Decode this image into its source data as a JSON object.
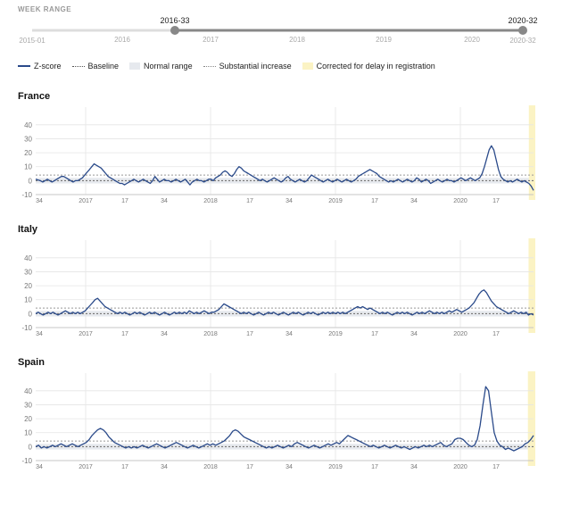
{
  "week_range": {
    "label": "WEEK RANGE",
    "start_value": "2016-33",
    "end_value": "2020-32",
    "min_label": "2015-01",
    "max_label": "2020-32",
    "year_labels": [
      "2016",
      "2017",
      "2018",
      "2019",
      "2020"
    ]
  },
  "legend": {
    "zscore": "Z-score",
    "baseline": "Baseline",
    "normal_range": "Normal range",
    "substantial_increase": "Substantial increase",
    "corrected": "Corrected for delay in registration"
  },
  "colors": {
    "line": "#2a4a8a",
    "normal_range": "#e6e9ee",
    "corrected": "#fbf3c4",
    "grid": "#e5e5e5",
    "slider_active": "#888888",
    "slider_inactive": "#dddddd"
  },
  "chart_data": [
    {
      "type": "line",
      "title": "France",
      "x_ticks": [
        "34",
        "2017",
        "17",
        "34",
        "2018",
        "17",
        "34",
        "2019",
        "17",
        "34",
        "2020",
        "17"
      ],
      "y_ticks": [
        "-10",
        "0",
        "10",
        "20",
        "30",
        "40"
      ],
      "ylim": [
        -10,
        45
      ],
      "baseline": 0,
      "normal_range": [
        -2,
        2
      ],
      "substantial_increase": 4,
      "corrected_weeks": 2,
      "series": [
        {
          "values": [
            1,
            0.5,
            0,
            -1,
            0,
            1,
            0,
            -1,
            0,
            1,
            2,
            3,
            3,
            2,
            1,
            0,
            -1,
            0,
            0,
            1,
            2,
            4,
            6,
            8,
            10,
            12,
            11,
            10,
            9,
            7,
            5,
            3,
            2,
            1,
            0,
            -1,
            -2,
            -2,
            -3,
            -2,
            -1,
            0,
            1,
            0,
            -1,
            0,
            1,
            0,
            -1,
            -2,
            0,
            3,
            1,
            -1,
            0,
            1,
            0,
            0,
            -1,
            0,
            1,
            0,
            -1,
            0,
            1,
            -1,
            -3,
            -1,
            0,
            1,
            0,
            0,
            -1,
            0,
            1,
            1,
            0,
            2,
            3,
            4,
            6,
            7,
            6,
            4,
            3,
            5,
            8,
            10,
            9,
            7,
            6,
            5,
            4,
            3,
            2,
            1,
            0,
            1,
            0,
            -1,
            0,
            1,
            2,
            1,
            0,
            -1,
            0,
            2,
            3,
            1,
            0,
            -1,
            0,
            1,
            0,
            -1,
            0,
            2,
            4,
            3,
            2,
            1,
            0,
            -1,
            0,
            1,
            0,
            -1,
            0,
            1,
            0,
            -1,
            0,
            1,
            0,
            -1,
            0,
            1,
            3,
            4,
            5,
            6,
            7,
            8,
            7,
            6,
            5,
            3,
            2,
            1,
            0,
            -1,
            0,
            -1,
            0,
            1,
            0,
            -1,
            0,
            1,
            0,
            -1,
            0,
            2,
            1,
            -1,
            0,
            1,
            0,
            -2,
            -1,
            0,
            1,
            0,
            -1,
            0,
            1,
            0,
            0,
            -1,
            0,
            1,
            2,
            1,
            0,
            1,
            2,
            1,
            0,
            1,
            2,
            5,
            10,
            16,
            22,
            25,
            22,
            15,
            8,
            3,
            1,
            0,
            -1,
            0,
            -1,
            0,
            1,
            0,
            -1,
            0,
            -1,
            -2,
            -4,
            -7
          ]
        }
      ]
    },
    {
      "type": "line",
      "title": "Italy",
      "x_ticks": [
        "34",
        "2017",
        "17",
        "34",
        "2018",
        "17",
        "34",
        "2019",
        "17",
        "34",
        "2020",
        "17"
      ],
      "y_ticks": [
        "-10",
        "0",
        "10",
        "20",
        "30",
        "40"
      ],
      "ylim": [
        -10,
        45
      ],
      "baseline": 0,
      "normal_range": [
        -2,
        2
      ],
      "substantial_increase": 4,
      "corrected_weeks": 2,
      "series": [
        {
          "values": [
            0,
            1,
            0,
            -1,
            0,
            1,
            0,
            1,
            0,
            -1,
            0,
            1,
            2,
            1,
            0,
            1,
            0,
            1,
            0,
            1,
            2,
            4,
            6,
            8,
            10,
            11,
            9,
            7,
            5,
            4,
            3,
            2,
            1,
            0,
            1,
            0,
            1,
            0,
            -1,
            0,
            1,
            0,
            1,
            0,
            -1,
            0,
            1,
            0,
            1,
            0,
            -1,
            0,
            1,
            0,
            -1,
            0,
            1,
            0,
            1,
            0,
            1,
            0,
            2,
            1,
            0,
            1,
            0,
            1,
            2,
            1,
            0,
            1,
            1,
            2,
            3,
            5,
            7,
            6,
            5,
            4,
            3,
            2,
            1,
            0,
            1,
            0,
            1,
            0,
            -1,
            0,
            1,
            0,
            -1,
            0,
            1,
            0,
            1,
            0,
            -1,
            0,
            1,
            0,
            -1,
            0,
            1,
            0,
            1,
            0,
            -1,
            0,
            1,
            0,
            1,
            0,
            -1,
            0,
            1,
            0,
            1,
            0,
            1,
            0,
            1,
            0,
            1,
            0,
            1,
            2,
            3,
            4,
            5,
            4,
            5,
            4,
            3,
            4,
            3,
            2,
            1,
            0,
            1,
            0,
            1,
            0,
            -1,
            0,
            1,
            0,
            1,
            0,
            1,
            0,
            -1,
            0,
            1,
            0,
            1,
            0,
            1,
            2,
            1,
            0,
            1,
            0,
            1,
            0,
            1,
            2,
            1,
            2,
            3,
            2,
            1,
            2,
            3,
            4,
            6,
            8,
            11,
            14,
            16,
            17,
            15,
            12,
            9,
            7,
            5,
            4,
            3,
            2,
            1,
            0,
            1,
            2,
            1,
            0,
            1,
            0,
            1,
            -1,
            0,
            -1
          ]
        }
      ]
    },
    {
      "type": "line",
      "title": "Spain",
      "x_ticks": [
        "34",
        "2017",
        "17",
        "34",
        "2018",
        "17",
        "34",
        "2019",
        "17",
        "34",
        "2020",
        "17"
      ],
      "y_ticks": [
        "-10",
        "0",
        "10",
        "20",
        "30",
        "40"
      ],
      "ylim": [
        -10,
        45
      ],
      "baseline": 0,
      "normal_range": [
        -2,
        2
      ],
      "substantial_increase": 4,
      "corrected_weeks": 2,
      "series": [
        {
          "values": [
            0,
            1,
            -1,
            0,
            -1,
            0,
            1,
            0,
            1,
            2,
            1,
            0,
            1,
            2,
            1,
            0,
            1,
            2,
            3,
            5,
            8,
            10,
            12,
            13,
            12,
            10,
            7,
            5,
            3,
            2,
            1,
            0,
            -1,
            0,
            -1,
            0,
            -1,
            0,
            1,
            0,
            -1,
            0,
            1,
            2,
            1,
            0,
            -1,
            0,
            1,
            2,
            3,
            2,
            1,
            0,
            -1,
            0,
            1,
            0,
            -1,
            0,
            1,
            2,
            1,
            2,
            1,
            2,
            3,
            4,
            6,
            8,
            11,
            12,
            11,
            9,
            7,
            6,
            5,
            4,
            3,
            2,
            1,
            0,
            -1,
            0,
            -1,
            0,
            1,
            0,
            -1,
            0,
            1,
            0,
            2,
            3,
            2,
            1,
            0,
            -1,
            0,
            1,
            0,
            -1,
            0,
            1,
            2,
            1,
            2,
            3,
            2,
            4,
            6,
            8,
            7,
            6,
            5,
            4,
            3,
            2,
            1,
            0,
            1,
            0,
            -1,
            0,
            1,
            0,
            -1,
            0,
            1,
            0,
            -1,
            0,
            -1,
            -2,
            -1,
            0,
            -1,
            0,
            1,
            0,
            1,
            0,
            1,
            2,
            3,
            1,
            0,
            1,
            2,
            5,
            6,
            6,
            5,
            3,
            1,
            0,
            1,
            5,
            15,
            30,
            43,
            40,
            25,
            10,
            4,
            1,
            0,
            -2,
            -1,
            -2,
            -3,
            -2,
            -1,
            0,
            2,
            3,
            5,
            8
          ]
        }
      ]
    }
  ]
}
